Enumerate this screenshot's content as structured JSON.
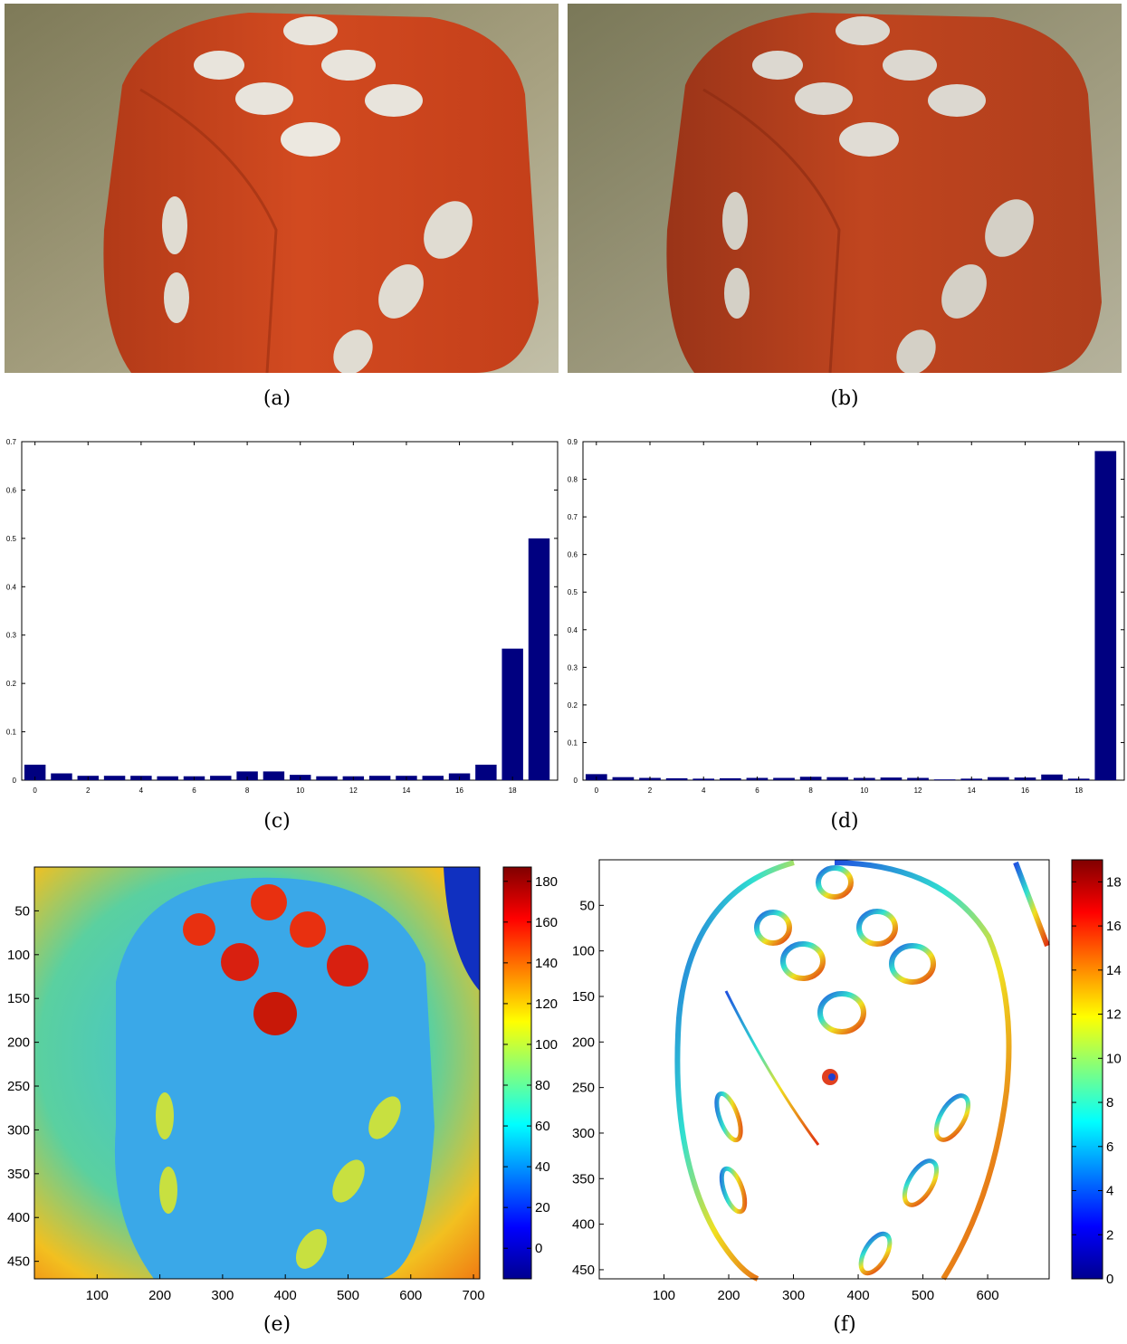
{
  "captions": {
    "a": "(a)",
    "b": "(b)",
    "c": "(c)",
    "d": "(d)",
    "e": "(e)",
    "f": "(f)"
  },
  "photos": {
    "a": {
      "label": "photo of red foam die (original)",
      "bg": "#8f8a64",
      "die": "#c8421a"
    },
    "b": {
      "label": "photo of red foam die (noisy)",
      "bg": "#8f8c68",
      "die": "#b8401d"
    }
  },
  "chart_data": [
    {
      "type": "bar",
      "id": "c",
      "categories": [
        0,
        1,
        2,
        3,
        4,
        5,
        6,
        7,
        8,
        9,
        10,
        11,
        12,
        13,
        14,
        15,
        16,
        17,
        18,
        19
      ],
      "values": [
        0.032,
        0.014,
        0.009,
        0.009,
        0.009,
        0.008,
        0.008,
        0.009,
        0.018,
        0.018,
        0.011,
        0.008,
        0.008,
        0.009,
        0.009,
        0.009,
        0.014,
        0.032,
        0.272,
        0.5
      ],
      "xticks": [
        0,
        2,
        4,
        6,
        8,
        10,
        12,
        14,
        16,
        18
      ],
      "yticks": [
        0,
        0.1,
        0.2,
        0.3,
        0.4,
        0.5,
        0.6,
        0.7
      ],
      "ylim": [
        0,
        0.7
      ],
      "xlim": [
        -0.5,
        19.7
      ],
      "bar_color": "#000080"
    },
    {
      "type": "bar",
      "id": "d",
      "categories": [
        0,
        1,
        2,
        3,
        4,
        5,
        6,
        7,
        8,
        9,
        10,
        11,
        12,
        13,
        14,
        15,
        16,
        17,
        18,
        19
      ],
      "values": [
        0.016,
        0.008,
        0.006,
        0.005,
        0.004,
        0.005,
        0.006,
        0.006,
        0.009,
        0.008,
        0.006,
        0.007,
        0.006,
        0.002,
        0.004,
        0.008,
        0.007,
        0.015,
        0.004,
        0.875
      ],
      "xticks": [
        0,
        2,
        4,
        6,
        8,
        10,
        12,
        14,
        16,
        18
      ],
      "yticks": [
        0,
        0.1,
        0.2,
        0.3,
        0.4,
        0.5,
        0.6,
        0.7,
        0.8,
        0.9
      ],
      "ylim": [
        0,
        0.9
      ],
      "xlim": [
        -0.5,
        19.7
      ],
      "bar_color": "#000080"
    },
    {
      "type": "heatmap",
      "id": "e",
      "xticks": [
        100,
        200,
        300,
        400,
        500,
        600,
        700
      ],
      "yticks": [
        50,
        100,
        150,
        200,
        250,
        300,
        350,
        400,
        450
      ],
      "xlim": [
        0,
        710
      ],
      "ylim": [
        0,
        470
      ],
      "colorbar": {
        "ticks": [
          0,
          20,
          40,
          60,
          80,
          100,
          120,
          140,
          160,
          180
        ],
        "range": [
          -15,
          187
        ]
      }
    },
    {
      "type": "heatmap",
      "id": "f",
      "xticks": [
        100,
        200,
        300,
        400,
        500,
        600
      ],
      "yticks": [
        50,
        100,
        150,
        200,
        250,
        300,
        350,
        400,
        450
      ],
      "xlim": [
        0,
        695
      ],
      "ylim": [
        0,
        460
      ],
      "colorbar": {
        "ticks": [
          0,
          2,
          4,
          6,
          8,
          10,
          12,
          14,
          16,
          18
        ],
        "range": [
          0,
          19
        ]
      }
    }
  ]
}
